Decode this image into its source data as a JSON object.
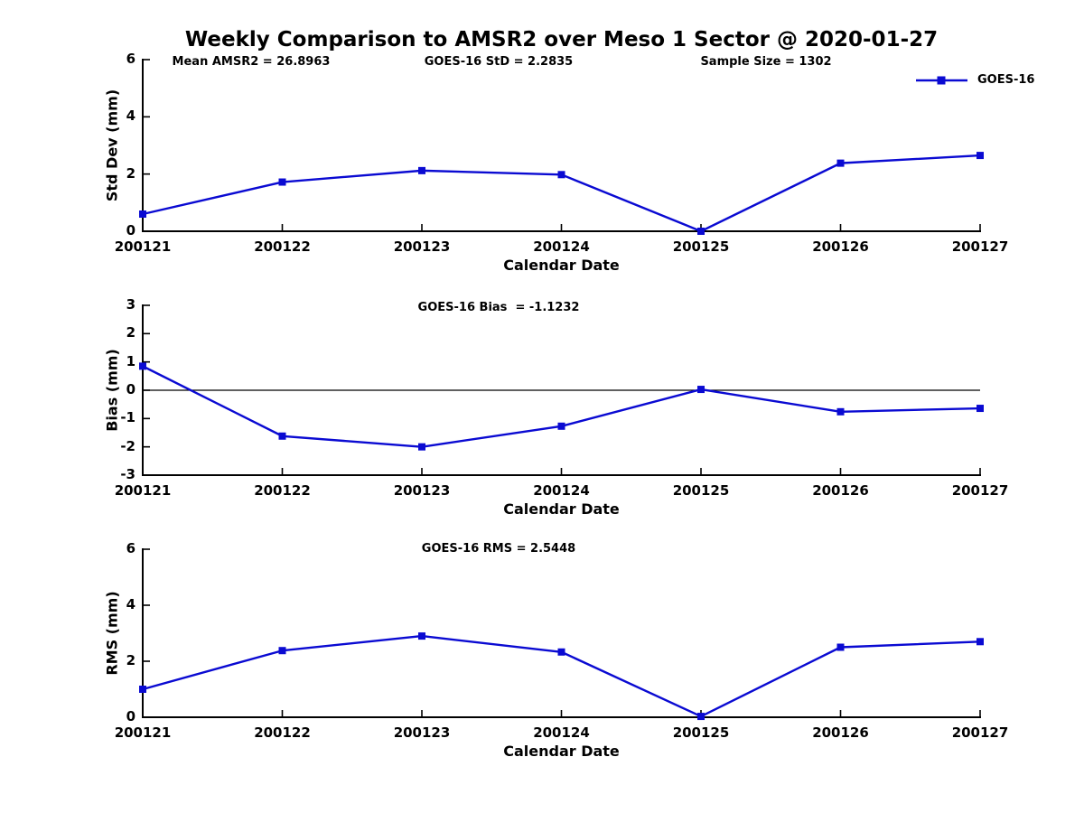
{
  "title": "Weekly Comparison to AMSR2 over Meso 1 Sector @ 2020-01-27",
  "legend": {
    "label": "GOES-16"
  },
  "colors": {
    "line": "#0a0ad2",
    "axis": "#000000",
    "text": "#000000",
    "background": "#ffffff"
  },
  "chart_data": [
    {
      "type": "line",
      "name": "std_dev",
      "categories": [
        "200121",
        "200122",
        "200123",
        "200124",
        "200125",
        "200126",
        "200127"
      ],
      "series": [
        {
          "name": "GOES-16",
          "values": [
            0.6,
            1.72,
            2.12,
            1.98,
            0.0,
            2.38,
            2.65
          ]
        }
      ],
      "xlabel": "Calendar Date",
      "ylabel": "Std Dev (mm)",
      "ylim": [
        0,
        6
      ],
      "yticks": [
        0,
        2,
        4,
        6
      ],
      "zero_line": false,
      "grid": false,
      "legend_position": "top-right",
      "annotations": [
        {
          "text": "Mean AMSR2 = 26.8963"
        },
        {
          "text": "GOES-16 StD = 2.2835"
        },
        {
          "text": "Sample Size = 1302"
        }
      ]
    },
    {
      "type": "line",
      "name": "bias",
      "categories": [
        "200121",
        "200122",
        "200123",
        "200124",
        "200125",
        "200126",
        "200127"
      ],
      "series": [
        {
          "name": "GOES-16",
          "values": [
            0.85,
            -1.62,
            -2.0,
            -1.27,
            0.03,
            -0.76,
            -0.64
          ]
        }
      ],
      "xlabel": "Calendar Date",
      "ylabel": "Bias (mm)",
      "ylim": [
        -3,
        3
      ],
      "yticks": [
        -3,
        -2,
        -1,
        0,
        1,
        2,
        3
      ],
      "zero_line": true,
      "grid": false,
      "annotations": [
        {
          "text": "GOES-16 Bias  = -1.1232"
        }
      ]
    },
    {
      "type": "line",
      "name": "rms",
      "categories": [
        "200121",
        "200122",
        "200123",
        "200124",
        "200125",
        "200126",
        "200127"
      ],
      "series": [
        {
          "name": "GOES-16",
          "values": [
            1.0,
            2.38,
            2.9,
            2.33,
            0.03,
            2.5,
            2.7
          ]
        }
      ],
      "xlabel": "Calendar Date",
      "ylabel": "RMS (mm)",
      "ylim": [
        0,
        6
      ],
      "yticks": [
        0,
        2,
        4,
        6
      ],
      "zero_line": false,
      "grid": false,
      "annotations": [
        {
          "text": "GOES-16 RMS = 2.5448"
        }
      ]
    }
  ]
}
